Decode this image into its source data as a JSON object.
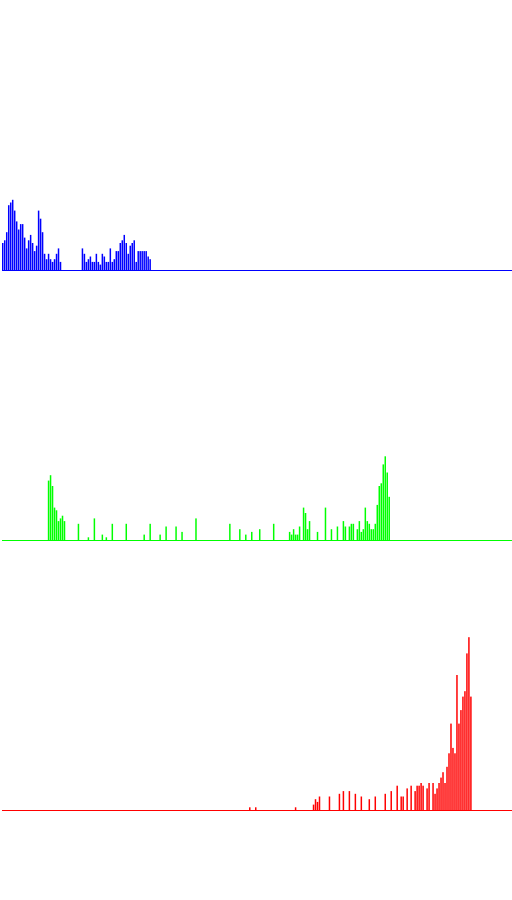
{
  "chart_data": [
    {
      "type": "bar",
      "title": "",
      "xlabel": "",
      "ylabel": "",
      "channel": "blue",
      "color": "#0000ff",
      "xlim": [
        0,
        255
      ],
      "ylim": [
        0,
        100
      ],
      "values": [
        10,
        11,
        14,
        24,
        25,
        26,
        22,
        18,
        15,
        17,
        17,
        12,
        8,
        11,
        13,
        10,
        7,
        9,
        22,
        19,
        14,
        6,
        4,
        6,
        4,
        3,
        4,
        6,
        8,
        3,
        0,
        0,
        0,
        0,
        0,
        0,
        0,
        0,
        0,
        0,
        8,
        6,
        3,
        4,
        5,
        3,
        3,
        6,
        3,
        2,
        6,
        5,
        3,
        3,
        8,
        3,
        4,
        7,
        7,
        10,
        11,
        13,
        10,
        6,
        9,
        10,
        11,
        3,
        7,
        7,
        7,
        7,
        7,
        5,
        4,
        0,
        0,
        0,
        0,
        0,
        0,
        0,
        0,
        0,
        0,
        0,
        0,
        0,
        0,
        0,
        0,
        0,
        0,
        0,
        0,
        0,
        0,
        0,
        0,
        0,
        0,
        0,
        0,
        0,
        0,
        0,
        0,
        0,
        0,
        0,
        0,
        0,
        0,
        0,
        0,
        0,
        0,
        0,
        0,
        0,
        0,
        0,
        0,
        0,
        0,
        0,
        0,
        0,
        0,
        0,
        0,
        0,
        0,
        0,
        0,
        0,
        0,
        0,
        0,
        0,
        0,
        0,
        0,
        0,
        0,
        0,
        0,
        0,
        0,
        0,
        0,
        0,
        0,
        0,
        0,
        0,
        0,
        0,
        0,
        0,
        0,
        0,
        0,
        0,
        0,
        0,
        0,
        0,
        0,
        0,
        0,
        0,
        0,
        0,
        0,
        0,
        0,
        0,
        0,
        0,
        0,
        0,
        0,
        0,
        0,
        0,
        0,
        0,
        0,
        0,
        0,
        0,
        0,
        0,
        0,
        0,
        0,
        0,
        0,
        0,
        0,
        0,
        0,
        0,
        0,
        0,
        0,
        0,
        0,
        0,
        0,
        0,
        0,
        0,
        0,
        0,
        0,
        0,
        0,
        0,
        0,
        0,
        0,
        0,
        0,
        0,
        0,
        0,
        0,
        0,
        0,
        0,
        0,
        0,
        0,
        0,
        0,
        0,
        0,
        0,
        0,
        0
      ]
    },
    {
      "type": "bar",
      "title": "",
      "xlabel": "",
      "ylabel": "",
      "channel": "green",
      "color": "#00ff00",
      "xlim": [
        0,
        255
      ],
      "ylim": [
        0,
        100
      ],
      "values": [
        0,
        0,
        0,
        0,
        0,
        0,
        0,
        0,
        0,
        0,
        0,
        0,
        0,
        0,
        0,
        0,
        0,
        0,
        0,
        0,
        0,
        0,
        0,
        22,
        24,
        20,
        12,
        11,
        7,
        8,
        9,
        7,
        0,
        0,
        0,
        0,
        0,
        0,
        6,
        0,
        0,
        0,
        0,
        1,
        0,
        0,
        8,
        0,
        0,
        0,
        2,
        0,
        1,
        0,
        0,
        6,
        0,
        0,
        0,
        0,
        0,
        0,
        6,
        0,
        0,
        0,
        0,
        0,
        0,
        0,
        0,
        2,
        0,
        0,
        6,
        0,
        0,
        0,
        0,
        2,
        0,
        0,
        5,
        0,
        0,
        0,
        0,
        5,
        0,
        0,
        3,
        0,
        0,
        0,
        0,
        0,
        0,
        8,
        0,
        0,
        0,
        0,
        0,
        0,
        0,
        0,
        0,
        0,
        0,
        0,
        0,
        0,
        0,
        0,
        6,
        0,
        0,
        0,
        0,
        4,
        0,
        0,
        2,
        0,
        0,
        3,
        0,
        0,
        0,
        4,
        0,
        0,
        0,
        0,
        0,
        0,
        6,
        0,
        0,
        0,
        0,
        0,
        0,
        0,
        3,
        2,
        4,
        2,
        2,
        5,
        0,
        12,
        10,
        4,
        7,
        0,
        0,
        0,
        3,
        0,
        0,
        0,
        12,
        0,
        0,
        4,
        0,
        0,
        5,
        0,
        0,
        7,
        5,
        0,
        5,
        6,
        6,
        0,
        4,
        7,
        3,
        4,
        12,
        7,
        6,
        4,
        4,
        6,
        13,
        20,
        21,
        28,
        31,
        25,
        16,
        0,
        0,
        0,
        0,
        0,
        0,
        0,
        0,
        0,
        0,
        0,
        0,
        0,
        0,
        0,
        0,
        0,
        0,
        0,
        0,
        0,
        0,
        0,
        0,
        0,
        0,
        0,
        0,
        0,
        0,
        0,
        0,
        0,
        0,
        0,
        0,
        0,
        0,
        0,
        0,
        0,
        0,
        0,
        0,
        0,
        0,
        0,
        0,
        0,
        0,
        0,
        0,
        0,
        0,
        0,
        0,
        0,
        0,
        0,
        0,
        0,
        0,
        0,
        0,
        0,
        0,
        0,
        0,
        0,
        0,
        0,
        0,
        0,
        0,
        0,
        0,
        0,
        0,
        0,
        0
      ]
    },
    {
      "type": "bar",
      "title": "",
      "xlabel": "",
      "ylabel": "",
      "channel": "red",
      "color": "#ff0000",
      "xlim": [
        0,
        255
      ],
      "ylim": [
        0,
        100
      ],
      "values": [
        0,
        0,
        0,
        0,
        0,
        0,
        0,
        0,
        0,
        0,
        0,
        0,
        0,
        0,
        0,
        0,
        0,
        0,
        0,
        0,
        0,
        0,
        0,
        0,
        0,
        0,
        0,
        0,
        0,
        0,
        0,
        0,
        0,
        0,
        0,
        0,
        0,
        0,
        0,
        0,
        0,
        0,
        0,
        0,
        0,
        0,
        0,
        0,
        0,
        0,
        0,
        0,
        0,
        0,
        0,
        0,
        0,
        0,
        0,
        0,
        0,
        0,
        0,
        0,
        0,
        0,
        0,
        0,
        0,
        0,
        0,
        0,
        0,
        0,
        0,
        0,
        0,
        0,
        0,
        0,
        0,
        0,
        0,
        0,
        0,
        0,
        0,
        0,
        0,
        0,
        0,
        0,
        0,
        0,
        0,
        0,
        0,
        0,
        0,
        0,
        0,
        0,
        0,
        0,
        0,
        0,
        0,
        0,
        0,
        0,
        0,
        0,
        0,
        0,
        0,
        0,
        0,
        0,
        0,
        0,
        0,
        0,
        0,
        0,
        1,
        0,
        0,
        1,
        0,
        0,
        0,
        0,
        0,
        0,
        0,
        0,
        0,
        0,
        0,
        0,
        0,
        0,
        0,
        0,
        0,
        0,
        0,
        1,
        0,
        0,
        0,
        0,
        0,
        0,
        0,
        0,
        2,
        4,
        3,
        5,
        0,
        0,
        0,
        0,
        5,
        0,
        0,
        0,
        0,
        6,
        0,
        7,
        0,
        0,
        7,
        0,
        0,
        6,
        0,
        0,
        5,
        0,
        0,
        0,
        4,
        0,
        0,
        5,
        0,
        0,
        0,
        0,
        6,
        0,
        0,
        7,
        0,
        0,
        9,
        0,
        5,
        5,
        0,
        8,
        0,
        9,
        0,
        7,
        9,
        9,
        10,
        9,
        0,
        8,
        10,
        0,
        10,
        6,
        8,
        10,
        12,
        14,
        10,
        16,
        21,
        32,
        23,
        21,
        50,
        32,
        37,
        42,
        44,
        58,
        64,
        42
      ]
    }
  ]
}
